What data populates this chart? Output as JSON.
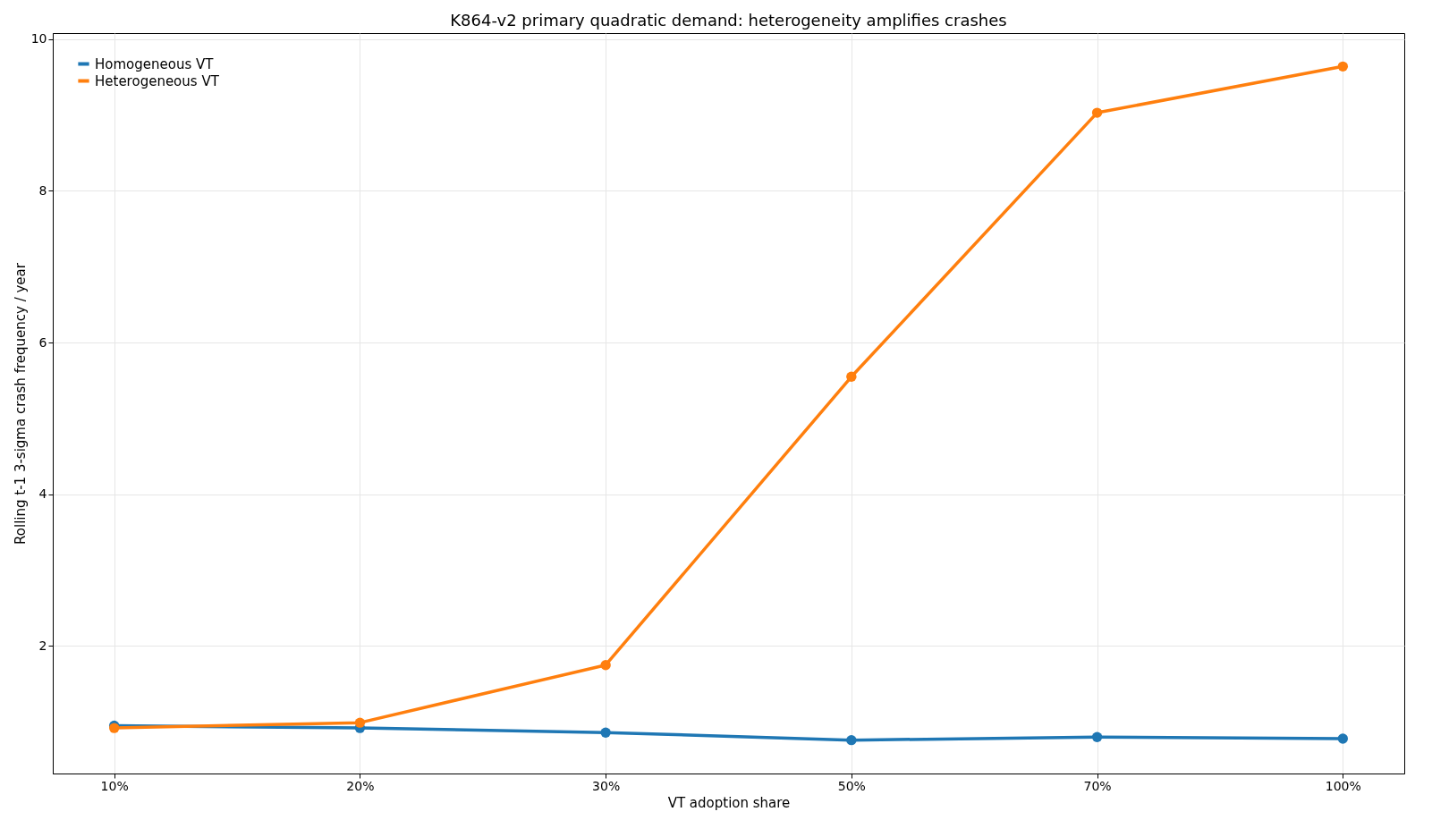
{
  "chart_data": {
    "type": "line",
    "title": "K864-v2 primary quadratic demand: heterogeneity amplifies crashes",
    "xlabel": "VT adoption share",
    "ylabel": "Rolling t-1 3-sigma crash frequency / year",
    "categories": [
      "10%",
      "20%",
      "30%",
      "50%",
      "70%",
      "100%"
    ],
    "series": [
      {
        "name": "Homogeneous VT",
        "color": "#1f77b4",
        "values": [
          0.95,
          0.92,
          0.86,
          0.76,
          0.8,
          0.78
        ]
      },
      {
        "name": "Heterogeneous VT",
        "color": "#ff7f0e",
        "values": [
          0.92,
          0.99,
          1.75,
          5.55,
          9.03,
          9.64
        ]
      }
    ],
    "ylim": [
      0.32,
      10.08
    ],
    "yticks": [
      2,
      4,
      6,
      8,
      10
    ],
    "grid": true,
    "legend": "top left",
    "marker": "circle",
    "line_style": "solid"
  }
}
